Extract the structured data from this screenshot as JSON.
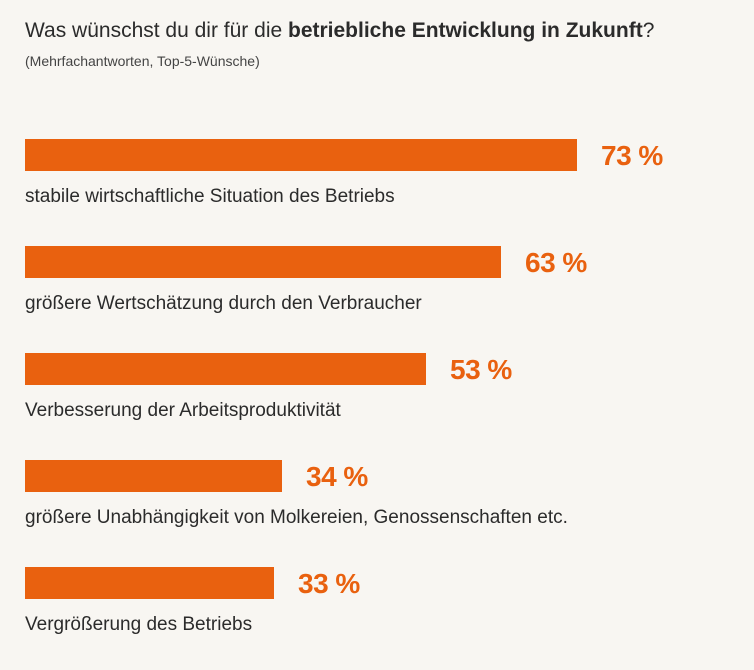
{
  "header": {
    "title_pre": "Was wünschst du dir für die ",
    "title_bold": "betriebliche Entwicklung in Zukunft",
    "title_post": "?",
    "subtitle": "(Mehrfachantworten, Top-5-Wünsche)"
  },
  "chart_data": {
    "type": "bar",
    "orientation": "horizontal",
    "unit": "%",
    "categories": [
      "stabile wirtschaftliche Situation des Betriebs",
      "größere Wertschätzung durch den Verbraucher",
      "Verbesserung der Arbeitsproduktivität",
      "größere Unabhängigkeit von Molkereien, Genossenschaften etc.",
      "Vergrößerung des Betriebs"
    ],
    "values": [
      73,
      63,
      53,
      34,
      33
    ],
    "value_labels": [
      "73 %",
      "63 %",
      "53 %",
      "34 %",
      "33 %"
    ],
    "bar_color": "#e9610f",
    "grid": false,
    "legend": "none"
  }
}
